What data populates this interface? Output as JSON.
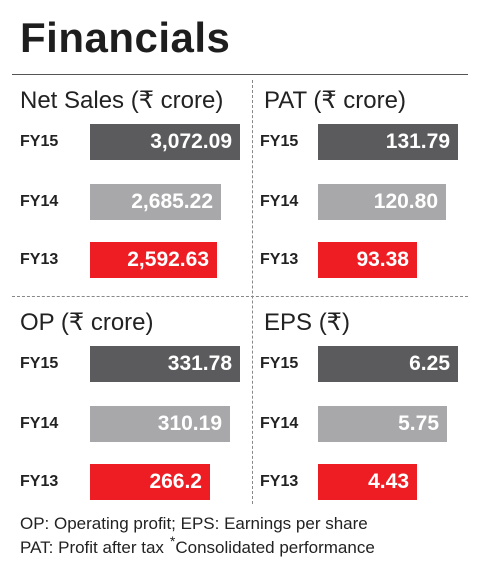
{
  "title": "Financials",
  "chart_data": [
    {
      "type": "bar",
      "title": "Net Sales (₹ crore)",
      "categories": [
        "FY15",
        "FY14",
        "FY13"
      ],
      "values": [
        3072.09,
        2685.22,
        2592.63
      ],
      "labels": [
        "3,072.09",
        "2,685.22",
        "2,592.63"
      ],
      "orientation": "horizontal"
    },
    {
      "type": "bar",
      "title": "PAT (₹ crore)",
      "categories": [
        "FY15",
        "FY14",
        "FY13"
      ],
      "values": [
        131.79,
        120.8,
        93.38
      ],
      "labels": [
        "131.79",
        "120.80",
        "93.38"
      ],
      "orientation": "horizontal"
    },
    {
      "type": "bar",
      "title": "OP (₹ crore)",
      "categories": [
        "FY15",
        "FY14",
        "FY13"
      ],
      "values": [
        331.78,
        310.19,
        266.2
      ],
      "labels": [
        "331.78",
        "310.19",
        "266.2"
      ],
      "orientation": "horizontal"
    },
    {
      "type": "bar",
      "title": "EPS (₹)",
      "categories": [
        "FY15",
        "FY14",
        "FY13"
      ],
      "values": [
        6.25,
        5.75,
        4.43
      ],
      "labels": [
        "6.25",
        "5.75",
        "4.43"
      ],
      "orientation": "horizontal"
    }
  ],
  "bar_colors": [
    "#5b5b5d",
    "#a8a8aa",
    "#ee1d24"
  ],
  "legend": {
    "line1": "OP: Operating profit; EPS: Earnings per share",
    "line2_left": "PAT: Profit after tax",
    "asterisk": "*",
    "line2_right": "Consolidated performance"
  }
}
